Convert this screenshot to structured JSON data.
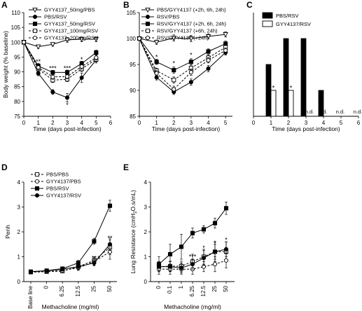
{
  "chart_data": [
    {
      "panel": "A",
      "type": "line",
      "xlabel": "Time (days post-infection)",
      "ylabel": "Body weight (% baseline)",
      "xlim": [
        0,
        6
      ],
      "ylim": [
        75,
        110
      ],
      "xticks": [
        "0",
        "1",
        "2",
        "3",
        "4",
        "5",
        "6"
      ],
      "yticks": [
        "75",
        "80",
        "85",
        "90",
        "95",
        "100",
        "105",
        "110"
      ],
      "legend": "top-left",
      "series": [
        {
          "name": "GYY4137_50mg/PBS",
          "marker": "triangle-open",
          "dash": false,
          "x": [
            0,
            1,
            2,
            3,
            4,
            5
          ],
          "y": [
            100,
            98.5,
            99.3,
            100.8,
            101,
            101
          ],
          "err": [
            0.3,
            0.6,
            0.6,
            0.8,
            0.8,
            0.8
          ]
        },
        {
          "name": "PBS/RSV",
          "marker": "circle-filled",
          "dash": false,
          "x": [
            0,
            1,
            2,
            3,
            4,
            5
          ],
          "y": [
            100,
            89.5,
            83.2,
            81.3,
            88,
            94
          ],
          "err": [
            0.3,
            0.8,
            0.8,
            1.4,
            1.6,
            1.0
          ]
        },
        {
          "name": "GYY4137_50mg/RSV",
          "marker": "square-filled",
          "dash": false,
          "x": [
            0,
            1,
            2,
            3,
            4,
            5
          ],
          "y": [
            100,
            92,
            89.8,
            89.8,
            92.8,
            96.5
          ],
          "err": [
            0.3,
            0.8,
            0.7,
            0.8,
            0.8,
            0.8
          ]
        },
        {
          "name": "GYY4137_100mg/RSV",
          "marker": "square-open",
          "dash": true,
          "x": [
            0,
            1,
            2,
            3,
            4,
            5
          ],
          "y": [
            100,
            91,
            87.2,
            87.5,
            91,
            94.2
          ],
          "err": [
            0.3,
            0.8,
            0.8,
            0.8,
            0.9,
            0.8
          ]
        },
        {
          "name": "GYY4137_200mg/RSV",
          "marker": "circle-open",
          "dash": true,
          "x": [
            0,
            1,
            2,
            3,
            4,
            5
          ],
          "y": [
            100,
            91.5,
            88.3,
            88.4,
            91.8,
            94.8
          ],
          "err": [
            0.3,
            0.8,
            0.8,
            0.8,
            0.9,
            0.8
          ]
        }
      ],
      "annotations": [
        {
          "text": "**",
          "x": 1,
          "y": 93.5
        },
        {
          "text": "***",
          "x": 2,
          "y": 91.2
        },
        {
          "text": "***",
          "x": 3,
          "y": 91.2
        },
        {
          "text": "*",
          "x": 4,
          "y": 94.2
        },
        {
          "text": "*",
          "x": 3,
          "y": 78.8
        }
      ]
    },
    {
      "panel": "B",
      "type": "line",
      "xlabel": "Time (days post-infection)",
      "ylabel": "",
      "xlim": [
        0,
        5.4
      ],
      "ylim": [
        85,
        105
      ],
      "xticks": [
        "0",
        "1",
        "2",
        "3",
        "4",
        "5"
      ],
      "yticks": [
        "85",
        "90",
        "95",
        "100",
        "105"
      ],
      "legend": "top-left",
      "series": [
        {
          "name": "PBS/GYY4137 (+2h, 6h, 24h)",
          "marker": "triangle-open",
          "dash": false,
          "x": [
            0,
            1,
            2,
            3,
            4,
            5
          ],
          "y": [
            100,
            99.3,
            100.1,
            100,
            100.4,
            100.8
          ],
          "err": [
            0.2,
            0.4,
            0.6,
            0.6,
            0.5,
            0.5
          ]
        },
        {
          "name": "RSV/PBS",
          "marker": "circle-filled",
          "dash": false,
          "x": [
            0,
            1,
            2,
            3,
            4,
            5
          ],
          "y": [
            100,
            92.5,
            89.7,
            91.6,
            94.2,
            97.3
          ],
          "err": [
            0.2,
            0.5,
            0.5,
            0.6,
            0.6,
            0.5
          ]
        },
        {
          "name": "RSV/GYY4137 (+2h, 6h, 24h)",
          "marker": "square-filled",
          "dash": false,
          "x": [
            0,
            1,
            2,
            3,
            4,
            5
          ],
          "y": [
            100,
            95.5,
            93.9,
            95.5,
            97.5,
            99
          ],
          "err": [
            0.2,
            0.5,
            0.6,
            0.6,
            0.5,
            0.5
          ]
        },
        {
          "name": "RSV/GYY4137 (+6h, 24h)",
          "marker": "square-open",
          "dash": true,
          "x": [
            0,
            1,
            2,
            3,
            4,
            5
          ],
          "y": [
            100,
            93.8,
            92,
            94.3,
            96.3,
            98.3
          ],
          "err": [
            0.2,
            0.5,
            0.6,
            0.6,
            0.5,
            0.5
          ]
        },
        {
          "name": "RSV/GYY4137 (+24h)",
          "marker": "circle-open",
          "dash": true,
          "x": [
            0,
            1,
            2,
            3,
            4,
            5
          ],
          "y": [
            100,
            93.3,
            90.2,
            93.5,
            95.8,
            97.7
          ],
          "err": [
            0.2,
            0.5,
            0.6,
            0.6,
            0.5,
            0.5
          ]
        }
      ],
      "annotations": [
        {
          "text": "*",
          "x": 1,
          "y": 96.4
        },
        {
          "text": "*",
          "x": 2,
          "y": 95.2
        },
        {
          "text": "*",
          "x": 3,
          "y": 96.8
        }
      ]
    },
    {
      "panel": "C",
      "type": "bar",
      "xlabel": "Time (days post-infection)",
      "ylabel": "",
      "xlim": [
        0,
        6
      ],
      "ylim": [
        0,
        4
      ],
      "xticks": [
        "0",
        "1",
        "2",
        "3",
        "4",
        "5",
        "6"
      ],
      "legend": "top-left",
      "series": [
        {
          "name": "PBS/RSV",
          "fill": "black",
          "x": [
            1,
            2,
            3,
            4
          ],
          "values": [
            2,
            3,
            3,
            1
          ]
        },
        {
          "name": "GYY4137/RSV",
          "fill": "white",
          "x": [
            1,
            2
          ],
          "values": [
            1,
            1
          ]
        }
      ],
      "annotations": [
        {
          "text": "*",
          "x": 1,
          "y": 1.1
        },
        {
          "text": "*",
          "x": 2,
          "y": 1.1
        }
      ],
      "nd_labels": [
        "n.d.",
        "n.d.",
        "n.d.",
        "n.d."
      ]
    },
    {
      "panel": "D",
      "type": "line",
      "xlabel": "Methacholine (mg/ml)",
      "ylabel": "Penh",
      "ylim": [
        0,
        4
      ],
      "categories": [
        "Base line",
        "0",
        "6.25",
        "12.5",
        "25",
        "50"
      ],
      "yticks": [
        "0",
        "1",
        "2",
        "3",
        "4"
      ],
      "legend": "top-left",
      "series": [
        {
          "name": "PBS/PBS",
          "marker": "square-open",
          "dash": true,
          "y": [
            0.38,
            0.4,
            0.42,
            0.6,
            0.85,
            1.38
          ],
          "err": [
            0.05,
            0.05,
            0.06,
            0.12,
            0.15,
            0.3
          ]
        },
        {
          "name": "GYY4137/PBS",
          "marker": "circle-open",
          "dash": true,
          "y": [
            0.38,
            0.4,
            0.45,
            0.55,
            0.8,
            1.2
          ],
          "err": [
            0.05,
            0.05,
            0.06,
            0.1,
            0.14,
            0.3
          ]
        },
        {
          "name": "PBS/RSV",
          "marker": "square-filled",
          "dash": false,
          "y": [
            0.4,
            0.44,
            0.52,
            0.75,
            1.62,
            3.05
          ],
          "err": [
            0.05,
            0.05,
            0.07,
            0.1,
            0.12,
            0.22
          ]
        },
        {
          "name": "GYY4137/RSV",
          "marker": "circle-filled",
          "dash": false,
          "y": [
            0.4,
            0.43,
            0.5,
            0.6,
            0.75,
            1.5
          ],
          "err": [
            0.05,
            0.05,
            0.07,
            0.1,
            0.12,
            0.25
          ]
        }
      ],
      "annotations": [
        {
          "text": "**",
          "x": 4,
          "y": 0.95
        },
        {
          "text": "**",
          "x": 5,
          "y": 1.75
        }
      ]
    },
    {
      "panel": "E",
      "type": "line",
      "xlabel": "Methacholine (mg/ml)",
      "ylabel": "Lung Resistance (cmH",
      "ylabel_sub": "2",
      "ylabel_tail": "O.s/mL)",
      "ylim": [
        0,
        4
      ],
      "categories": [
        "0",
        "0.1",
        "1",
        "6.25",
        "12.5",
        "25",
        "50"
      ],
      "yticks": [
        "0",
        "1",
        "2",
        "3",
        "4"
      ],
      "series": [
        {
          "name": "PBS/PBS",
          "marker": "square-open",
          "dash": true,
          "y": [
            0.6,
            0.62,
            0.62,
            0.8,
            1.0,
            1.2,
            1.2
          ],
          "err": [
            0.2,
            0.2,
            0.2,
            0.3,
            0.3,
            0.4,
            0.4
          ]
        },
        {
          "name": "GYY4137/PBS",
          "marker": "circle-open",
          "dash": true,
          "y": [
            0.5,
            0.5,
            0.5,
            0.5,
            0.6,
            0.7,
            0.85
          ],
          "err": [
            0.2,
            0.2,
            0.2,
            0.2,
            0.2,
            0.3,
            0.3
          ]
        },
        {
          "name": "PBS/RSV",
          "marker": "square-filled",
          "dash": false,
          "y": [
            0.7,
            1.1,
            1.4,
            1.95,
            2.1,
            2.35,
            2.95
          ],
          "err": [
            0.3,
            0.4,
            0.5,
            0.2,
            0.15,
            0.2,
            0.25
          ]
        },
        {
          "name": "GYY4137/RSV",
          "marker": "circle-filled",
          "dash": false,
          "y": [
            0.6,
            0.6,
            0.55,
            0.7,
            0.95,
            1.2,
            1.3
          ],
          "err": [
            0.2,
            0.2,
            0.2,
            0.2,
            0.3,
            0.3,
            0.3
          ]
        }
      ],
      "annotations": [
        {
          "text": "***",
          "x": 3,
          "y": 1.0
        },
        {
          "text": "*",
          "x": 4,
          "y": 1.35
        },
        {
          "text": "*",
          "x": 5,
          "y": 1.55
        },
        {
          "text": "*",
          "x": 6,
          "y": 1.68
        }
      ]
    }
  ]
}
